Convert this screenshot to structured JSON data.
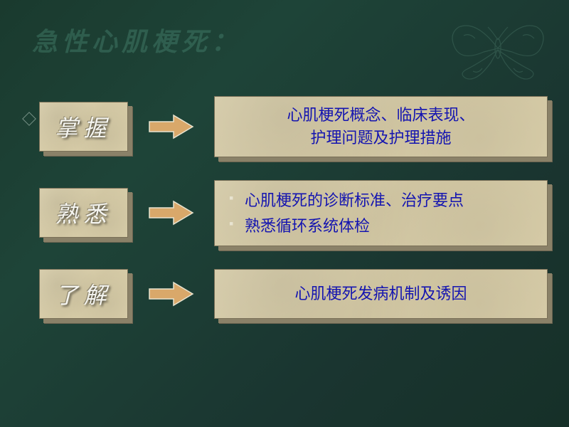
{
  "title": "急性心肌梗死：",
  "arrow_color": "#d9a86a",
  "arrow_outline": "#e8e3d0",
  "box_face_color": "#d9cfae",
  "box_side_color": "#8a8168",
  "content_text_color": "#1414b0",
  "label_text_color": "#f5f5f0",
  "decoration_color": "#5a8a78",
  "rows": [
    {
      "label": "掌握",
      "type": "text",
      "content": "心肌梗死概念、临床表现、\n护理问题及护理措施"
    },
    {
      "label": "熟悉",
      "type": "list",
      "items": [
        "心肌梗死的诊断标准、治疗要点",
        "熟悉循环系统体检"
      ]
    },
    {
      "label": "了解",
      "type": "text",
      "content": "心肌梗死发病机制及诱因"
    }
  ]
}
